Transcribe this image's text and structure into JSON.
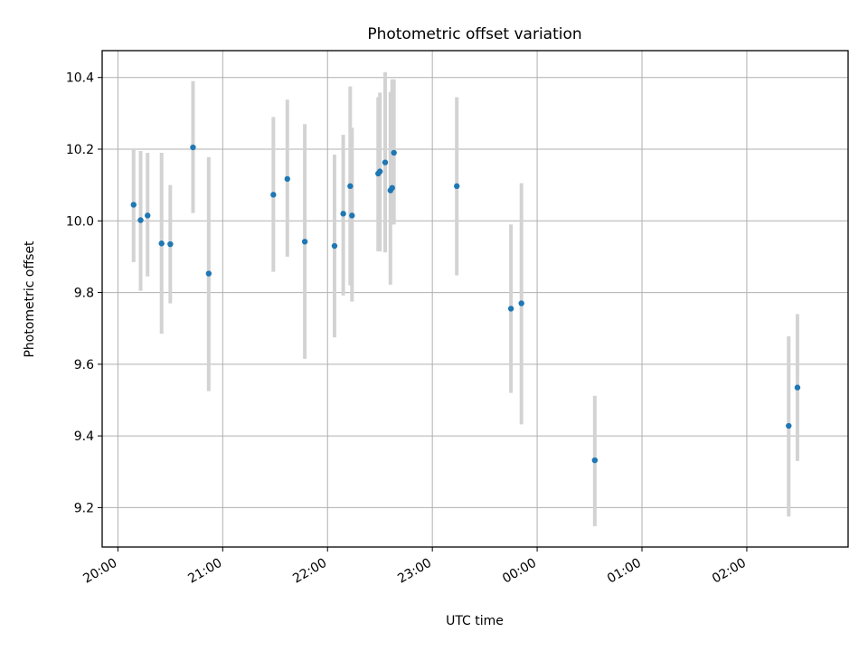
{
  "chart_data": {
    "type": "scatter",
    "title": "Photometric offset variation",
    "xlabel": "UTC time",
    "ylabel": "Photometric offset",
    "grid": true,
    "x_ticks": [
      "20:00",
      "21:00",
      "22:00",
      "23:00",
      "00:00",
      "01:00",
      "02:00"
    ],
    "y_ticks": [
      "9.2",
      "9.4",
      "9.6",
      "9.8",
      "10.0",
      "10.2",
      "10.4"
    ],
    "xlim": [
      "19:51",
      "02:58"
    ],
    "ylim": [
      9.09,
      10.475
    ],
    "point_color": "#1f77b4",
    "errorbar_color": "#d3d3d3",
    "points": [
      {
        "x": "20:09",
        "y": 10.045,
        "lo": 9.885,
        "hi": 10.2
      },
      {
        "x": "20:13",
        "y": 10.002,
        "lo": 9.805,
        "hi": 10.195
      },
      {
        "x": "20:17",
        "y": 10.015,
        "lo": 9.845,
        "hi": 10.19
      },
      {
        "x": "20:25",
        "y": 9.937,
        "lo": 9.685,
        "hi": 10.19
      },
      {
        "x": "20:30",
        "y": 9.935,
        "lo": 9.77,
        "hi": 10.1
      },
      {
        "x": "20:43",
        "y": 10.205,
        "lo": 10.022,
        "hi": 10.39
      },
      {
        "x": "20:52",
        "y": 9.853,
        "lo": 9.525,
        "hi": 10.178
      },
      {
        "x": "21:29",
        "y": 10.073,
        "lo": 9.858,
        "hi": 10.29
      },
      {
        "x": "21:37",
        "y": 10.117,
        "lo": 9.9,
        "hi": 10.338
      },
      {
        "x": "21:47",
        "y": 9.942,
        "lo": 9.615,
        "hi": 10.27
      },
      {
        "x": "22:04",
        "y": 9.93,
        "lo": 9.675,
        "hi": 10.185
      },
      {
        "x": "22:09",
        "y": 10.02,
        "lo": 9.792,
        "hi": 10.24
      },
      {
        "x": "22:13",
        "y": 10.097,
        "lo": 9.82,
        "hi": 10.375
      },
      {
        "x": "22:14",
        "y": 10.015,
        "lo": 9.775,
        "hi": 10.26
      },
      {
        "x": "22:29",
        "y": 10.132,
        "lo": 9.915,
        "hi": 10.345
      },
      {
        "x": "22:30",
        "y": 10.138,
        "lo": 9.915,
        "hi": 10.358
      },
      {
        "x": "22:33",
        "y": 10.163,
        "lo": 9.912,
        "hi": 10.415
      },
      {
        "x": "22:36",
        "y": 10.085,
        "lo": 9.822,
        "hi": 10.36
      },
      {
        "x": "22:37",
        "y": 10.092,
        "lo": 9.99,
        "hi": 10.395
      },
      {
        "x": "22:38",
        "y": 10.19,
        "lo": 9.99,
        "hi": 10.395
      },
      {
        "x": "23:14",
        "y": 10.097,
        "lo": 9.848,
        "hi": 10.345
      },
      {
        "x": "23:45",
        "y": 9.755,
        "lo": 9.52,
        "hi": 9.99
      },
      {
        "x": "23:51",
        "y": 9.77,
        "lo": 9.432,
        "hi": 10.105
      },
      {
        "x": "00:33",
        "y": 9.332,
        "lo": 9.148,
        "hi": 9.512
      },
      {
        "x": "02:24",
        "y": 9.428,
        "lo": 9.175,
        "hi": 9.678
      },
      {
        "x": "02:29",
        "y": 9.535,
        "lo": 9.33,
        "hi": 9.74
      }
    ]
  }
}
